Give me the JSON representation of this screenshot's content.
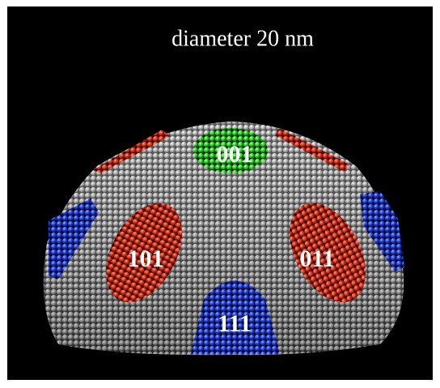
{
  "title": "diameter  20 nm",
  "facets": [
    "001",
    "101",
    "011",
    "111"
  ]
}
